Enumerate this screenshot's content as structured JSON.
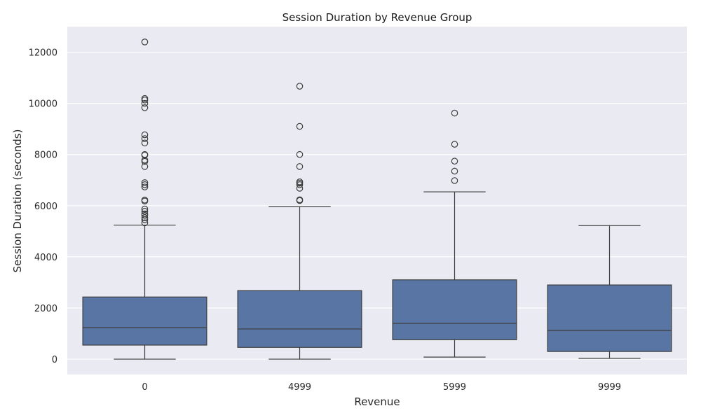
{
  "chart_data": {
    "type": "box",
    "title": "Session Duration by Revenue Group",
    "xlabel": "Revenue",
    "ylabel": "Session Duration (seconds)",
    "categories": [
      "0",
      "4999",
      "5999",
      "9999"
    ],
    "ylim": [
      -600,
      13000
    ],
    "yticks": [
      0,
      2000,
      4000,
      6000,
      8000,
      10000,
      12000
    ],
    "grid": true,
    "colors": {
      "background": "#eaeaf2",
      "grid": "#ffffff",
      "box_fill": "#5875a4",
      "box_edge": "#3d3d3d"
    },
    "boxes": [
      {
        "category": "0",
        "whisker_low": 0,
        "q1": 550,
        "median": 1230,
        "q3": 2430,
        "whisker_high": 5240,
        "outliers": [
          5330,
          5450,
          5530,
          5620,
          5680,
          5780,
          5870,
          6180,
          6220,
          6730,
          6820,
          6900,
          7530,
          7730,
          7780,
          7980,
          8000,
          8450,
          8620,
          8770,
          9830,
          10000,
          10130,
          10190,
          12400
        ]
      },
      {
        "category": "4999",
        "whisker_low": 0,
        "q1": 460,
        "median": 1180,
        "q3": 2680,
        "whisker_high": 5960,
        "outliers": [
          6200,
          6230,
          6680,
          6820,
          6880,
          6930,
          7530,
          8000,
          9100,
          10670
        ]
      },
      {
        "category": "5999",
        "whisker_low": 80,
        "q1": 760,
        "median": 1400,
        "q3": 3100,
        "whisker_high": 6540,
        "outliers": [
          6980,
          7350,
          7740,
          8400,
          9620
        ]
      },
      {
        "category": "9999",
        "whisker_low": 30,
        "q1": 300,
        "median": 1120,
        "q3": 2900,
        "whisker_high": 5220,
        "outliers": []
      }
    ]
  }
}
